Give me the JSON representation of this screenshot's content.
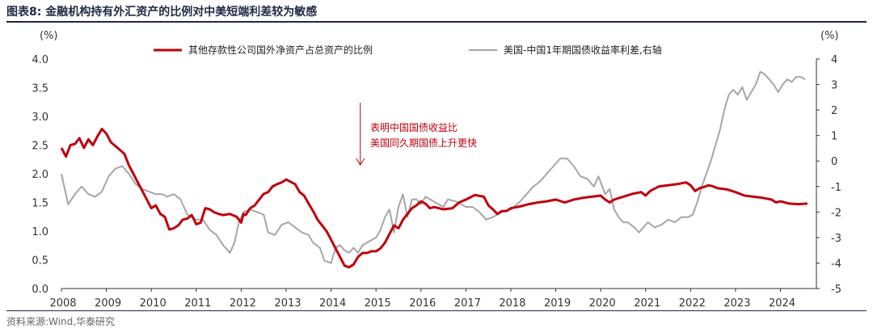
{
  "figure": {
    "title": "图表8:  金融机构持有外汇资产的比例对中美短端利差较为敏感",
    "source": "资料来源:Wind,华泰研究"
  },
  "chart_data": {
    "type": "line",
    "dual_axis": true,
    "grid": false,
    "legend_position": "top",
    "x_ticks": [
      "2008",
      "2009",
      "2010",
      "2011",
      "2012",
      "2013",
      "2014",
      "2015",
      "2016",
      "2017",
      "2018",
      "2019",
      "2020",
      "2021",
      "2022",
      "2023",
      "2024"
    ],
    "y_left": {
      "unit": "(%)",
      "range": [
        0,
        4
      ],
      "ticks": [
        "0.0",
        "0.5",
        "1.0",
        "1.5",
        "2.0",
        "2.5",
        "3.0",
        "3.5",
        "4.0"
      ]
    },
    "y_right": {
      "unit": "(%)",
      "range": [
        -5,
        4
      ],
      "ticks": [
        "-5",
        "-4",
        "-3",
        "-2",
        "-1",
        "0",
        "1",
        "2",
        "3",
        "4"
      ]
    },
    "series": [
      {
        "name": "其他存款性公司国外净资产占总资产的比例",
        "axis": "left",
        "color": "#c0000b",
        "points": [
          [
            2008.0,
            2.45
          ],
          [
            2008.1,
            2.3
          ],
          [
            2008.2,
            2.5
          ],
          [
            2008.3,
            2.52
          ],
          [
            2008.4,
            2.62
          ],
          [
            2008.5,
            2.45
          ],
          [
            2008.6,
            2.6
          ],
          [
            2008.7,
            2.5
          ],
          [
            2008.8,
            2.65
          ],
          [
            2008.9,
            2.78
          ],
          [
            2009.0,
            2.7
          ],
          [
            2009.1,
            2.55
          ],
          [
            2009.25,
            2.45
          ],
          [
            2009.4,
            2.35
          ],
          [
            2009.5,
            2.15
          ],
          [
            2009.6,
            2.0
          ],
          [
            2009.7,
            1.85
          ],
          [
            2009.8,
            1.7
          ],
          [
            2009.9,
            1.55
          ],
          [
            2010.0,
            1.4
          ],
          [
            2010.1,
            1.45
          ],
          [
            2010.2,
            1.3
          ],
          [
            2010.3,
            1.25
          ],
          [
            2010.4,
            1.03
          ],
          [
            2010.5,
            1.05
          ],
          [
            2010.6,
            1.1
          ],
          [
            2010.7,
            1.2
          ],
          [
            2010.8,
            1.22
          ],
          [
            2010.9,
            1.28
          ],
          [
            2011.0,
            1.12
          ],
          [
            2011.1,
            1.15
          ],
          [
            2011.2,
            1.4
          ],
          [
            2011.3,
            1.38
          ],
          [
            2011.4,
            1.33
          ],
          [
            2011.5,
            1.3
          ],
          [
            2011.6,
            1.28
          ],
          [
            2011.75,
            1.3
          ],
          [
            2011.9,
            1.25
          ],
          [
            2012.0,
            1.15
          ],
          [
            2012.05,
            1.3
          ],
          [
            2012.1,
            1.28
          ],
          [
            2012.2,
            1.4
          ],
          [
            2012.3,
            1.45
          ],
          [
            2012.4,
            1.55
          ],
          [
            2012.5,
            1.65
          ],
          [
            2012.6,
            1.68
          ],
          [
            2012.7,
            1.78
          ],
          [
            2012.8,
            1.82
          ],
          [
            2012.9,
            1.85
          ],
          [
            2013.0,
            1.9
          ],
          [
            2013.1,
            1.86
          ],
          [
            2013.2,
            1.82
          ],
          [
            2013.3,
            1.68
          ],
          [
            2013.4,
            1.62
          ],
          [
            2013.5,
            1.48
          ],
          [
            2013.6,
            1.35
          ],
          [
            2013.7,
            1.2
          ],
          [
            2013.8,
            1.1
          ],
          [
            2013.9,
            1.0
          ],
          [
            2014.0,
            0.85
          ],
          [
            2014.1,
            0.7
          ],
          [
            2014.2,
            0.55
          ],
          [
            2014.3,
            0.4
          ],
          [
            2014.4,
            0.37
          ],
          [
            2014.5,
            0.42
          ],
          [
            2014.6,
            0.55
          ],
          [
            2014.7,
            0.62
          ],
          [
            2014.8,
            0.62
          ],
          [
            2014.9,
            0.65
          ],
          [
            2015.0,
            0.65
          ],
          [
            2015.1,
            0.7
          ],
          [
            2015.2,
            0.8
          ],
          [
            2015.3,
            0.95
          ],
          [
            2015.4,
            1.1
          ],
          [
            2015.5,
            1.05
          ],
          [
            2015.6,
            1.2
          ],
          [
            2015.7,
            1.3
          ],
          [
            2015.8,
            1.4
          ],
          [
            2015.9,
            1.45
          ],
          [
            2016.0,
            1.52
          ],
          [
            2016.1,
            1.48
          ],
          [
            2016.2,
            1.4
          ],
          [
            2016.3,
            1.42
          ],
          [
            2016.5,
            1.38
          ],
          [
            2016.7,
            1.4
          ],
          [
            2016.85,
            1.5
          ],
          [
            2017.0,
            1.55
          ],
          [
            2017.2,
            1.63
          ],
          [
            2017.4,
            1.6
          ],
          [
            2017.5,
            1.45
          ],
          [
            2017.6,
            1.38
          ],
          [
            2017.7,
            1.3
          ],
          [
            2017.8,
            1.35
          ],
          [
            2017.9,
            1.35
          ],
          [
            2018.0,
            1.4
          ],
          [
            2018.2,
            1.43
          ],
          [
            2018.4,
            1.47
          ],
          [
            2018.6,
            1.5
          ],
          [
            2018.8,
            1.52
          ],
          [
            2019.0,
            1.55
          ],
          [
            2019.2,
            1.5
          ],
          [
            2019.4,
            1.55
          ],
          [
            2019.6,
            1.58
          ],
          [
            2019.8,
            1.6
          ],
          [
            2020.0,
            1.62
          ],
          [
            2020.1,
            1.55
          ],
          [
            2020.2,
            1.5
          ],
          [
            2020.3,
            1.55
          ],
          [
            2020.5,
            1.6
          ],
          [
            2020.7,
            1.65
          ],
          [
            2020.9,
            1.68
          ],
          [
            2021.0,
            1.62
          ],
          [
            2021.1,
            1.7
          ],
          [
            2021.3,
            1.78
          ],
          [
            2021.5,
            1.8
          ],
          [
            2021.7,
            1.82
          ],
          [
            2021.9,
            1.85
          ],
          [
            2022.0,
            1.8
          ],
          [
            2022.1,
            1.7
          ],
          [
            2022.2,
            1.75
          ],
          [
            2022.3,
            1.77
          ],
          [
            2022.4,
            1.8
          ],
          [
            2022.5,
            1.78
          ],
          [
            2022.6,
            1.75
          ],
          [
            2022.8,
            1.73
          ],
          [
            2023.0,
            1.68
          ],
          [
            2023.2,
            1.62
          ],
          [
            2023.4,
            1.6
          ],
          [
            2023.6,
            1.58
          ],
          [
            2023.8,
            1.55
          ],
          [
            2023.9,
            1.5
          ],
          [
            2024.0,
            1.52
          ],
          [
            2024.2,
            1.48
          ],
          [
            2024.4,
            1.47
          ],
          [
            2024.6,
            1.48
          ]
        ]
      },
      {
        "name": "美国-中国1年期国债收益率利差,右轴",
        "axis": "right",
        "color": "#a6a6a6",
        "points": [
          [
            2008.0,
            -0.5
          ],
          [
            2008.15,
            -1.7
          ],
          [
            2008.3,
            -1.3
          ],
          [
            2008.45,
            -1.0
          ],
          [
            2008.6,
            -1.3
          ],
          [
            2008.75,
            -1.4
          ],
          [
            2008.9,
            -1.2
          ],
          [
            2009.05,
            -0.6
          ],
          [
            2009.2,
            -0.3
          ],
          [
            2009.35,
            -0.2
          ],
          [
            2009.5,
            -0.5
          ],
          [
            2009.65,
            -0.9
          ],
          [
            2009.8,
            -1.1
          ],
          [
            2009.95,
            -1.2
          ],
          [
            2010.1,
            -1.3
          ],
          [
            2010.25,
            -1.3
          ],
          [
            2010.35,
            -1.4
          ],
          [
            2010.5,
            -1.3
          ],
          [
            2010.65,
            -1.5
          ],
          [
            2010.8,
            -2.1
          ],
          [
            2010.9,
            -2.2
          ],
          [
            2011.0,
            -2.3
          ],
          [
            2011.15,
            -2.3
          ],
          [
            2011.3,
            -2.7
          ],
          [
            2011.45,
            -2.9
          ],
          [
            2011.6,
            -3.3
          ],
          [
            2011.75,
            -3.6
          ],
          [
            2011.85,
            -3.2
          ],
          [
            2011.95,
            -2.4
          ],
          [
            2012.05,
            -2.0
          ],
          [
            2012.2,
            -1.9
          ],
          [
            2012.35,
            -2.0
          ],
          [
            2012.5,
            -2.1
          ],
          [
            2012.6,
            -2.8
          ],
          [
            2012.75,
            -2.9
          ],
          [
            2012.9,
            -2.5
          ],
          [
            2013.05,
            -2.4
          ],
          [
            2013.2,
            -2.6
          ],
          [
            2013.35,
            -2.8
          ],
          [
            2013.5,
            -2.9
          ],
          [
            2013.6,
            -3.2
          ],
          [
            2013.75,
            -3.4
          ],
          [
            2013.85,
            -3.9
          ],
          [
            2014.0,
            -4.0
          ],
          [
            2014.1,
            -3.4
          ],
          [
            2014.2,
            -3.3
          ],
          [
            2014.3,
            -3.5
          ],
          [
            2014.4,
            -3.6
          ],
          [
            2014.5,
            -3.4
          ],
          [
            2014.6,
            -3.6
          ],
          [
            2014.7,
            -3.3
          ],
          [
            2014.8,
            -3.2
          ],
          [
            2014.9,
            -3.1
          ],
          [
            2015.0,
            -3.0
          ],
          [
            2015.1,
            -2.7
          ],
          [
            2015.2,
            -2.2
          ],
          [
            2015.3,
            -1.9
          ],
          [
            2015.4,
            -2.8
          ],
          [
            2015.5,
            -1.8
          ],
          [
            2015.6,
            -1.3
          ],
          [
            2015.7,
            -2.2
          ],
          [
            2015.8,
            -1.5
          ],
          [
            2015.9,
            -1.5
          ],
          [
            2016.0,
            -1.7
          ],
          [
            2016.1,
            -1.4
          ],
          [
            2016.3,
            -1.6
          ],
          [
            2016.5,
            -1.8
          ],
          [
            2016.6,
            -1.5
          ],
          [
            2016.8,
            -1.6
          ],
          [
            2017.0,
            -1.8
          ],
          [
            2017.15,
            -1.8
          ],
          [
            2017.3,
            -2.0
          ],
          [
            2017.45,
            -2.3
          ],
          [
            2017.6,
            -2.2
          ],
          [
            2017.8,
            -2.0
          ],
          [
            2018.0,
            -1.9
          ],
          [
            2018.2,
            -1.6
          ],
          [
            2018.35,
            -1.3
          ],
          [
            2018.5,
            -1.0
          ],
          [
            2018.65,
            -0.8
          ],
          [
            2018.8,
            -0.5
          ],
          [
            2018.95,
            -0.2
          ],
          [
            2019.1,
            0.1
          ],
          [
            2019.25,
            0.1
          ],
          [
            2019.4,
            -0.2
          ],
          [
            2019.55,
            -0.6
          ],
          [
            2019.7,
            -0.7
          ],
          [
            2019.85,
            -1.0
          ],
          [
            2019.95,
            -0.6
          ],
          [
            2020.1,
            -1.3
          ],
          [
            2020.2,
            -1.1
          ],
          [
            2020.3,
            -1.9
          ],
          [
            2020.4,
            -2.2
          ],
          [
            2020.5,
            -2.4
          ],
          [
            2020.6,
            -2.4
          ],
          [
            2020.75,
            -2.6
          ],
          [
            2020.85,
            -2.8
          ],
          [
            2020.95,
            -2.6
          ],
          [
            2021.05,
            -2.4
          ],
          [
            2021.2,
            -2.6
          ],
          [
            2021.35,
            -2.5
          ],
          [
            2021.5,
            -2.3
          ],
          [
            2021.65,
            -2.4
          ],
          [
            2021.8,
            -2.2
          ],
          [
            2021.95,
            -2.2
          ],
          [
            2022.05,
            -2.1
          ],
          [
            2022.15,
            -1.6
          ],
          [
            2022.25,
            -1.0
          ],
          [
            2022.35,
            -0.5
          ],
          [
            2022.45,
            0.0
          ],
          [
            2022.55,
            0.6
          ],
          [
            2022.65,
            1.2
          ],
          [
            2022.75,
            2.0
          ],
          [
            2022.85,
            2.6
          ],
          [
            2022.95,
            2.8
          ],
          [
            2023.05,
            2.6
          ],
          [
            2023.15,
            2.9
          ],
          [
            2023.25,
            2.4
          ],
          [
            2023.35,
            2.7
          ],
          [
            2023.45,
            3.0
          ],
          [
            2023.55,
            3.5
          ],
          [
            2023.65,
            3.4
          ],
          [
            2023.75,
            3.2
          ],
          [
            2023.85,
            3.0
          ],
          [
            2023.95,
            2.7
          ],
          [
            2024.05,
            3.0
          ],
          [
            2024.15,
            3.2
          ],
          [
            2024.25,
            3.1
          ],
          [
            2024.35,
            3.3
          ],
          [
            2024.45,
            3.3
          ],
          [
            2024.55,
            3.2
          ]
        ]
      }
    ],
    "annotation": {
      "lines": [
        "表明中国国债收益比",
        "美国同久期国债上升更快"
      ],
      "arrow_x": 2014.65,
      "color": "#c0000b"
    }
  }
}
